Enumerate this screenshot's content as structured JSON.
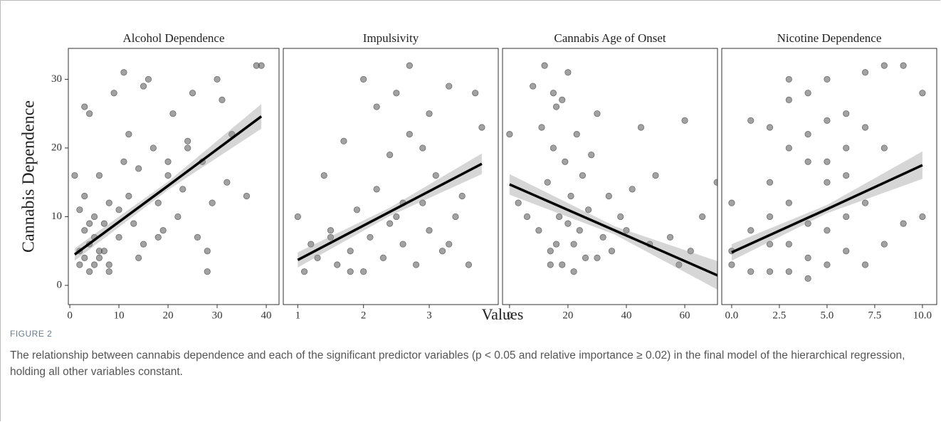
{
  "ylabel": "Cannabis Dependence",
  "xlabel": "Values",
  "ylim": [
    -2.8,
    34.5
  ],
  "yticks": [
    0,
    10,
    20,
    30
  ],
  "figure_label": "FIGURE 2",
  "caption": "The relationship between cannabis dependence and each of the significant predictor variables (p < 0.05 and relative importance ≥ 0.02) in the final model of the hierarchical regression, holding all other variables constant.",
  "chart_data": [
    {
      "type": "scatter",
      "title": "Alcohol Dependence",
      "color": "#555555",
      "xlim": [
        -0.3,
        42.6
      ],
      "xticks": [
        0,
        10,
        20,
        30,
        40
      ],
      "x": [
        1,
        2,
        2,
        3,
        3,
        3,
        4,
        4,
        4,
        5,
        5,
        5,
        6,
        6,
        7,
        7,
        8,
        8,
        9,
        10,
        10,
        11,
        12,
        12,
        13,
        14,
        15,
        15,
        16,
        17,
        18,
        19,
        20,
        21,
        22,
        23,
        24,
        25,
        26,
        27,
        28,
        29,
        30,
        31,
        32,
        33,
        36,
        38,
        39,
        3,
        4,
        2,
        6,
        8,
        11,
        14,
        18,
        20,
        24,
        28
      ],
      "values": [
        16,
        5,
        3,
        26,
        8,
        4,
        2,
        25,
        6,
        10,
        3,
        7,
        16,
        4,
        5,
        9,
        2,
        12,
        28,
        11,
        7,
        31,
        13,
        22,
        9,
        17,
        29,
        6,
        30,
        20,
        12,
        8,
        18,
        25,
        10,
        14,
        21,
        28,
        7,
        18,
        5,
        12,
        30,
        27,
        15,
        22,
        13,
        32,
        32,
        13,
        9,
        11,
        5,
        3,
        18,
        4,
        7,
        16,
        20,
        2
      ],
      "fit": {
        "x": [
          1,
          20,
          39
        ],
        "values": [
          4.5,
          14.5,
          24.6
        ],
        "lower": [
          3.6,
          13.9,
          22.8
        ],
        "upper": [
          5.4,
          15.1,
          26.4
        ]
      }
    },
    {
      "type": "scatter",
      "title": "Impulsivity",
      "color": "#555555",
      "xlim": [
        0.78,
        4.05
      ],
      "xticks": [
        1,
        2,
        3
      ],
      "x": [
        1.0,
        1.1,
        1.2,
        1.3,
        1.4,
        1.5,
        1.6,
        1.7,
        1.8,
        1.9,
        2.0,
        2.0,
        2.1,
        2.2,
        2.3,
        2.4,
        2.5,
        2.5,
        2.6,
        2.7,
        2.7,
        2.8,
        2.9,
        3.0,
        3.0,
        3.1,
        3.2,
        3.3,
        3.4,
        3.5,
        3.6,
        3.7,
        3.8,
        1.5,
        2.2,
        2.6,
        2.9,
        3.3,
        1.8,
        2.4
      ],
      "values": [
        10,
        2,
        6,
        4,
        16,
        8,
        3,
        21,
        5,
        11,
        2,
        30,
        7,
        14,
        4,
        19,
        10,
        28,
        6,
        32,
        22,
        3,
        12,
        8,
        25,
        16,
        5,
        29,
        10,
        13,
        3,
        28,
        23,
        7,
        26,
        12,
        20,
        6,
        2,
        9
      ],
      "fit": {
        "x": [
          1,
          2.4,
          3.8
        ],
        "values": [
          3.7,
          10.7,
          17.7
        ],
        "lower": [
          2.6,
          10.1,
          16.2
        ],
        "upper": [
          4.8,
          11.3,
          19.2
        ]
      }
    },
    {
      "type": "scatter",
      "title": "Cannabis Age of Onset",
      "color": "#555555",
      "xlim": [
        -2.4,
        71.2
      ],
      "xticks": [
        0,
        20,
        40,
        60
      ],
      "x": [
        0,
        3,
        6,
        8,
        10,
        11,
        12,
        13,
        14,
        15,
        15,
        16,
        17,
        18,
        18,
        19,
        20,
        20,
        21,
        22,
        23,
        24,
        25,
        26,
        27,
        28,
        30,
        32,
        34,
        35,
        38,
        40,
        42,
        45,
        48,
        50,
        55,
        58,
        60,
        62,
        66,
        71,
        14,
        22,
        30,
        16
      ],
      "values": [
        22,
        12,
        10,
        29,
        8,
        23,
        32,
        15,
        5,
        20,
        28,
        6,
        10,
        27,
        3,
        18,
        9,
        31,
        13,
        6,
        22,
        8,
        16,
        4,
        11,
        19,
        25,
        7,
        13,
        5,
        10,
        8,
        14,
        23,
        6,
        16,
        7,
        3,
        24,
        5,
        10,
        15,
        3,
        2,
        4,
        26
      ],
      "fit": {
        "x": [
          0,
          36,
          72
        ],
        "values": [
          14.7,
          8.0,
          1.3
        ],
        "lower": [
          13.2,
          7.4,
          -0.8
        ],
        "upper": [
          16.2,
          8.6,
          3.4
        ]
      }
    },
    {
      "type": "scatter",
      "title": "Nicotine Dependence",
      "color": "#555555",
      "xlim": [
        -0.52,
        10.75
      ],
      "xticks": [
        {
          "value": 0,
          "label": "0.0"
        },
        2.5,
        {
          "value": 5,
          "label": "5.0"
        },
        7.5,
        {
          "value": 10,
          "label": "10.0"
        }
      ],
      "x": [
        0,
        0,
        0,
        1,
        1,
        1,
        2,
        2,
        2,
        2,
        2,
        3,
        3,
        3,
        3,
        3,
        3,
        4,
        4,
        4,
        4,
        4,
        4,
        5,
        5,
        5,
        5,
        5,
        5,
        6,
        6,
        6,
        6,
        6,
        7,
        7,
        7,
        7,
        8,
        8,
        8,
        9,
        9,
        10,
        10
      ],
      "values": [
        12,
        5,
        3,
        24,
        8,
        2,
        23,
        15,
        6,
        2,
        10,
        30,
        20,
        12,
        6,
        2,
        27,
        28,
        18,
        9,
        4,
        1,
        22,
        30,
        24,
        15,
        8,
        3,
        18,
        25,
        16,
        10,
        5,
        20,
        31,
        23,
        12,
        3,
        32,
        20,
        6,
        32,
        9,
        28,
        10
      ],
      "fit": {
        "x": [
          0,
          5,
          10
        ],
        "values": [
          4.8,
          11.1,
          17.5
        ],
        "lower": [
          3.6,
          10.5,
          15.5
        ],
        "upper": [
          6.0,
          11.7,
          19.5
        ]
      }
    }
  ]
}
